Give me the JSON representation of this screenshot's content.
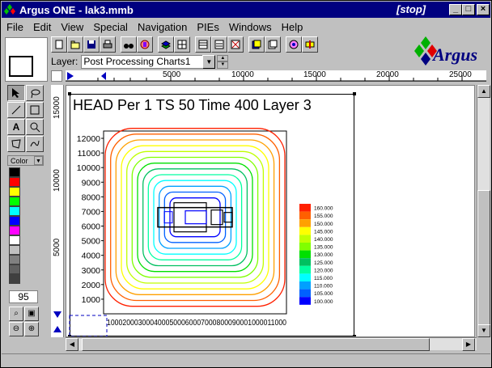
{
  "window": {
    "title": "Argus ONE - lak3.mmb",
    "status": "[stop]",
    "minimize": "_",
    "maximize": "□",
    "close": "×"
  },
  "menu": [
    "File",
    "Edit",
    "View",
    "Special",
    "Navigation",
    "PIEs",
    "Windows",
    "Help"
  ],
  "toolbar_icons": [
    "new-icon",
    "open-icon",
    "save-icon",
    "print-icon",
    "binoculars-icon",
    "info-icon",
    "layers-icon",
    "grid-icon",
    "table-icon",
    "chart-icon",
    "function-icon",
    "stack-icon",
    "doc-icon",
    "link-icon",
    "export-icon"
  ],
  "logo": {
    "text": "Argus"
  },
  "layer": {
    "label": "Layer:",
    "value": "Post Processing Charts1"
  },
  "hruler": {
    "labels": [
      "5000",
      "10000",
      "15000",
      "20000",
      "25000"
    ]
  },
  "vruler": {
    "labels": [
      "15000",
      "10000",
      "5000"
    ]
  },
  "palette": {
    "color_label": "Color",
    "zoom_value": "95",
    "colors": [
      "#000000",
      "#ff0000",
      "#ffff00",
      "#00ff00",
      "#00ffff",
      "#0000ff",
      "#ff00ff",
      "#ffffff",
      "#c0c0c0",
      "#808080",
      "#606060",
      "#404040"
    ]
  },
  "chart_data": {
    "type": "contour",
    "title": "HEAD Per 1 TS 50 Time 400  Layer  3",
    "y_ticks": [
      "12000",
      "11000",
      "10000",
      "9000",
      "8000",
      "7000",
      "6000",
      "5000",
      "4000",
      "3000",
      "2000",
      "1000"
    ],
    "x_ticks": "1000200030004000500060007000800090001000011000",
    "ylim": [
      0,
      12500
    ],
    "xlim": [
      0,
      12000
    ],
    "legend": [
      {
        "value": "160.000",
        "color": "#ff2000"
      },
      {
        "value": "155.000",
        "color": "#ff6000"
      },
      {
        "value": "150.000",
        "color": "#ffa000"
      },
      {
        "value": "145.000",
        "color": "#ffff00"
      },
      {
        "value": "140.000",
        "color": "#c0ff00"
      },
      {
        "value": "135.000",
        "color": "#80ff00"
      },
      {
        "value": "130.000",
        "color": "#00e000"
      },
      {
        "value": "125.000",
        "color": "#00c060"
      },
      {
        "value": "120.000",
        "color": "#00ffa0"
      },
      {
        "value": "115.000",
        "color": "#00ffff"
      },
      {
        "value": "110.000",
        "color": "#00a0ff"
      },
      {
        "value": "105.000",
        "color": "#0060ff"
      },
      {
        "value": "100.000",
        "color": "#0000ff"
      }
    ]
  }
}
